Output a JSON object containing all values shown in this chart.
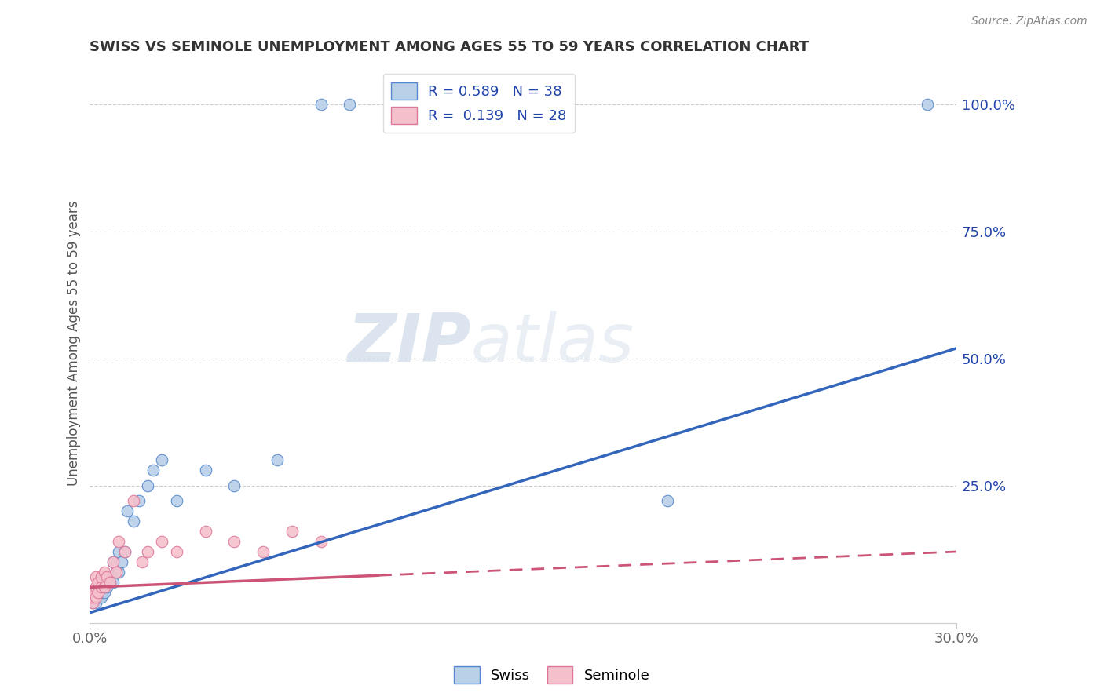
{
  "title": "SWISS VS SEMINOLE UNEMPLOYMENT AMONG AGES 55 TO 59 YEARS CORRELATION CHART",
  "source": "Source: ZipAtlas.com",
  "ylabel": "Unemployment Among Ages 55 to 59 years",
  "xlim": [
    0.0,
    0.3
  ],
  "ylim": [
    -0.02,
    1.08
  ],
  "xticks": [
    0.0,
    0.3
  ],
  "xticklabels": [
    "0.0%",
    "30.0%"
  ],
  "ytick_positions": [
    0.25,
    0.5,
    0.75,
    1.0
  ],
  "ytick_labels": [
    "25.0%",
    "50.0%",
    "75.0%",
    "100.0%"
  ],
  "swiss_color": "#b8d0e8",
  "swiss_edge_color": "#5588cc",
  "swiss_line_color": "#3366bb",
  "seminole_color": "#f5c0cc",
  "seminole_edge_color": "#dd7799",
  "seminole_line_color": "#cc5577",
  "legend_R_color": "#2244aa",
  "legend_label_color": "#333333",
  "background_color": "#ffffff",
  "watermark_zip": "ZIP",
  "watermark_atlas": "atlas",
  "swiss_R": 0.589,
  "swiss_N": 38,
  "seminole_R": 0.139,
  "seminole_N": 28,
  "swiss_line_x0": 0.0,
  "swiss_line_y0": 0.0,
  "swiss_line_x1": 0.3,
  "swiss_line_y1": 0.52,
  "seminole_line_x0": 0.0,
  "seminole_line_y0": 0.05,
  "seminole_line_x1": 0.3,
  "seminole_line_y1": 0.12,
  "seminole_line_solid_end": 0.1,
  "swiss_x": [
    0.001,
    0.001,
    0.002,
    0.002,
    0.002,
    0.003,
    0.003,
    0.003,
    0.004,
    0.004,
    0.004,
    0.005,
    0.005,
    0.005,
    0.006,
    0.006,
    0.007,
    0.008,
    0.008,
    0.009,
    0.01,
    0.01,
    0.011,
    0.012,
    0.013,
    0.015,
    0.017,
    0.02,
    0.022,
    0.025,
    0.03,
    0.04,
    0.05,
    0.065,
    0.08,
    0.09,
    0.2,
    0.29
  ],
  "swiss_y": [
    0.02,
    0.03,
    0.02,
    0.03,
    0.04,
    0.03,
    0.04,
    0.05,
    0.03,
    0.04,
    0.05,
    0.04,
    0.05,
    0.06,
    0.05,
    0.06,
    0.07,
    0.06,
    0.1,
    0.08,
    0.08,
    0.12,
    0.1,
    0.12,
    0.2,
    0.18,
    0.22,
    0.25,
    0.28,
    0.3,
    0.22,
    0.28,
    0.25,
    0.3,
    1.0,
    1.0,
    0.22,
    1.0
  ],
  "seminole_x": [
    0.001,
    0.001,
    0.001,
    0.002,
    0.002,
    0.002,
    0.003,
    0.003,
    0.004,
    0.004,
    0.005,
    0.005,
    0.006,
    0.007,
    0.008,
    0.009,
    0.01,
    0.012,
    0.015,
    0.018,
    0.02,
    0.025,
    0.03,
    0.04,
    0.05,
    0.06,
    0.07,
    0.08
  ],
  "seminole_y": [
    0.02,
    0.03,
    0.04,
    0.03,
    0.05,
    0.07,
    0.04,
    0.06,
    0.05,
    0.07,
    0.05,
    0.08,
    0.07,
    0.06,
    0.1,
    0.08,
    0.14,
    0.12,
    0.22,
    0.1,
    0.12,
    0.14,
    0.12,
    0.16,
    0.14,
    0.12,
    0.16,
    0.14
  ]
}
